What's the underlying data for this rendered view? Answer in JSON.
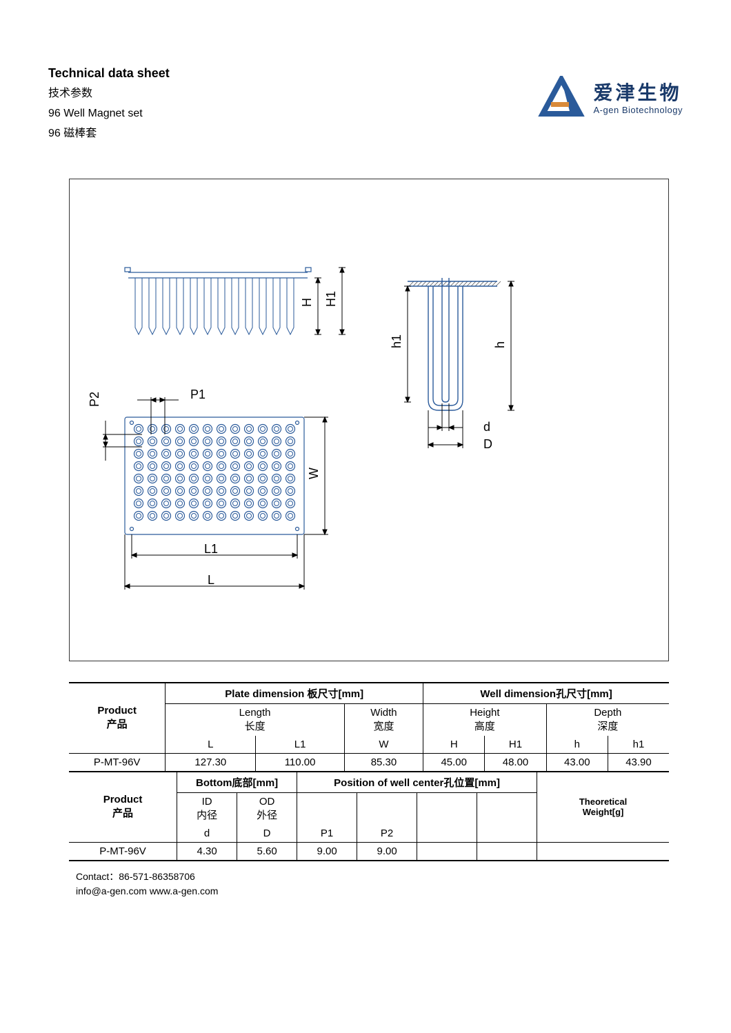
{
  "header": {
    "title_en": "Technical data sheet",
    "title_cn": "技术参数",
    "product_en": "96 Well Magnet set",
    "product_cn": "96 磁棒套"
  },
  "logo": {
    "name_cn": "爱津生物",
    "name_en": "A-gen Biotechnology",
    "triangle_color": "#2a5a9a",
    "bar_color": "#d98a3a"
  },
  "diagram": {
    "border_color": "#333333",
    "line_color": "#2a5a9a",
    "well_line_color": "#2a5a9a",
    "hatch_color": "#555555",
    "plate_rows": 8,
    "plate_cols": 12,
    "side_wells": 12,
    "labels": {
      "H": "H",
      "H1": "H1",
      "h": "h",
      "h1": "h1",
      "d": "d",
      "D": "D",
      "L": "L",
      "L1": "L1",
      "W": "W",
      "P1": "P1",
      "P2": "P2"
    }
  },
  "table1": {
    "section1_header": "Plate dimension 板尺寸[mm]",
    "section2_header": "Well dimension孔尺寸[mm]",
    "product_label_en": "Product",
    "product_label_cn": "产品",
    "cols": {
      "length_en": "Length",
      "length_cn": "长度",
      "width_en": "Width",
      "width_cn": "宽度",
      "height_en": "Height",
      "height_cn": "高度",
      "depth_en": "Depth",
      "depth_cn": "深度"
    },
    "subcols": {
      "L": "L",
      "L1": "L1",
      "W": "W",
      "H": "H",
      "H1": "H1",
      "h": "h",
      "h1": "h1"
    },
    "row": {
      "product": "P-MT-96V",
      "L": "127.30",
      "L1": "110.00",
      "W": "85.30",
      "H": "45.00",
      "H1": "48.00",
      "h": "43.00",
      "h1": "43.90"
    }
  },
  "table2": {
    "section1_header": "Bottom底部[mm]",
    "section2_header": "Position of well center孔位置[mm]",
    "product_label_en": "Product",
    "product_label_cn": "产品",
    "theoretical_label1": "Theoretical",
    "theoretical_label2": "Weight[g]",
    "cols": {
      "id_en": "ID",
      "id_cn": "内径",
      "od_en": "OD",
      "od_cn": "外径"
    },
    "subcols": {
      "d": "d",
      "D": "D",
      "P1": "P1",
      "P2": "P2"
    },
    "row": {
      "product": "P-MT-96V",
      "d": "4.30",
      "D": "5.60",
      "P1": "9.00",
      "P2": "9.00",
      "weight": ""
    }
  },
  "footer": {
    "contact": "Contact：86-571-86358706",
    "info": "info@a-gen.com www.a-gen.com"
  },
  "colors": {
    "text": "#000000",
    "logo_blue": "#1a3a6a",
    "diagram_blue": "#2a5a9a"
  }
}
